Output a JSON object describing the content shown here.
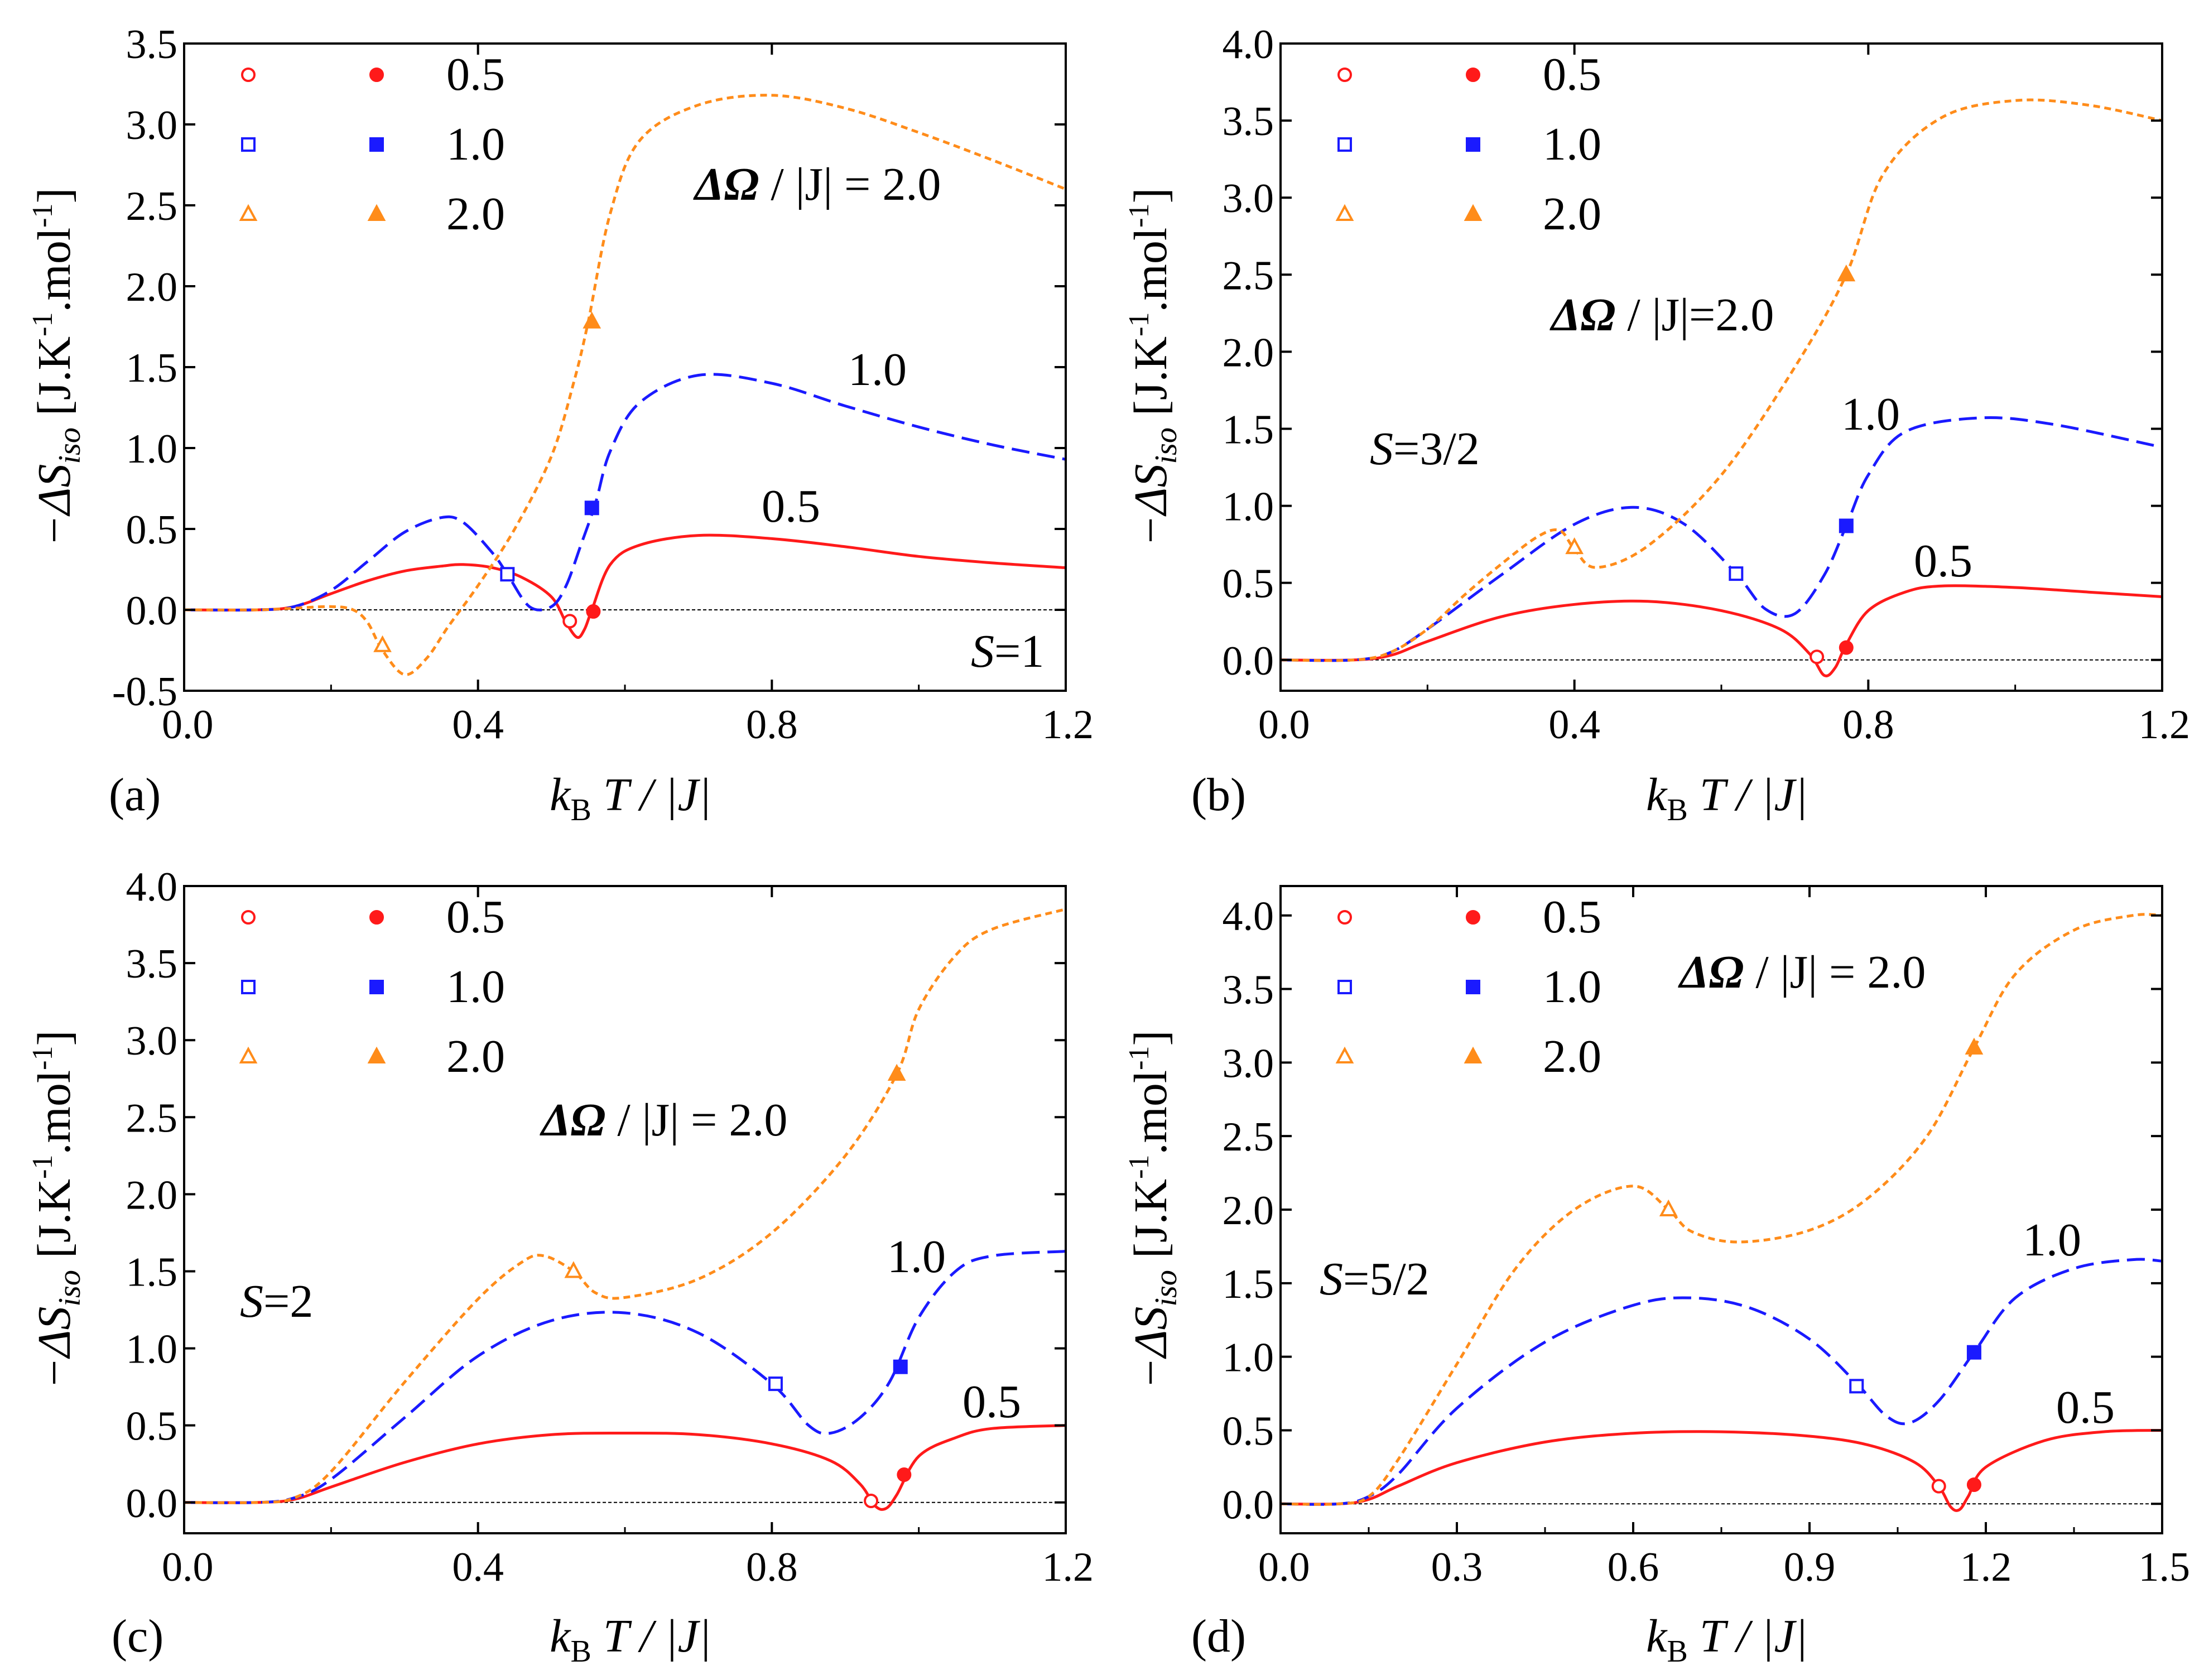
{
  "figure": {
    "xlabel_k": "k",
    "xlabel_sub": "B",
    "xlabel_rest": "T / |J|",
    "ylabel_prefix": "−ΔS",
    "ylabel_sub": "iso",
    "ylabel_units_a": "[J.K",
    "ylabel_sup1": "-1",
    "ylabel_units_b": ".mol",
    "ylabel_sup2": "-1",
    "ylabel_units_c": "]",
    "legend_entries": [
      {
        "label": "0.5",
        "color": "#ff1a1a",
        "marker": "circle"
      },
      {
        "label": "1.0",
        "color": "#1a1aff",
        "marker": "square"
      },
      {
        "label": "2.0",
        "color": "#ff8c1a",
        "marker": "triangle"
      }
    ],
    "colors": {
      "s05": "#ff1a1a",
      "s10": "#1a1aff",
      "s20": "#ff8c1a",
      "axis": "#000000",
      "zero_line": "#000000"
    }
  },
  "chart_data": [
    {
      "panel": "(a)",
      "type": "line",
      "spin_label": "S=1",
      "xlim": [
        0,
        1.2
      ],
      "ylim": [
        -0.5,
        3.5
      ],
      "xticks": [
        0.0,
        0.4,
        0.8,
        1.2
      ],
      "xtick_labels": [
        "0.0",
        "0.4",
        "0.8",
        "1.2"
      ],
      "yticks": [
        -0.5,
        0.0,
        0.5,
        1.0,
        1.5,
        2.0,
        2.5,
        3.0,
        3.5
      ],
      "ytick_labels": [
        "-0.5",
        "0.0",
        "0.5",
        "1.0",
        "1.5",
        "2.0",
        "2.5",
        "3.0",
        "3.5"
      ],
      "annotations": {
        "do_label": "ΔΩ",
        "do_rest": " / |J| = 2.0",
        "l10": "1.0",
        "l05": "0.5"
      },
      "series": [
        {
          "id": "s05",
          "x": [
            0,
            0.1,
            0.15,
            0.2,
            0.25,
            0.3,
            0.35,
            0.38,
            0.42,
            0.46,
            0.5,
            0.52,
            0.535,
            0.545,
            0.555,
            0.58,
            0.62,
            0.7,
            0.8,
            0.9,
            1.0,
            1.1,
            1.2
          ],
          "y": [
            0,
            0,
            0.02,
            0.1,
            0.18,
            0.24,
            0.27,
            0.28,
            0.26,
            0.2,
            0.08,
            -0.08,
            -0.17,
            -0.12,
            0.0,
            0.28,
            0.4,
            0.46,
            0.44,
            0.39,
            0.33,
            0.29,
            0.26
          ],
          "open_marker": [
            0.525,
            -0.07
          ],
          "filled_marker": [
            0.557,
            -0.01
          ]
        },
        {
          "id": "s10",
          "x": [
            0,
            0.1,
            0.15,
            0.2,
            0.25,
            0.3,
            0.35,
            0.38,
            0.42,
            0.44,
            0.47,
            0.5,
            0.52,
            0.54,
            0.56,
            0.58,
            0.62,
            0.7,
            0.8,
            0.9,
            1.0,
            1.1,
            1.2
          ],
          "y": [
            0,
            0,
            0.02,
            0.12,
            0.3,
            0.48,
            0.57,
            0.54,
            0.35,
            0.22,
            0.02,
            0.02,
            0.15,
            0.4,
            0.66,
            0.98,
            1.28,
            1.45,
            1.4,
            1.26,
            1.13,
            1.02,
            0.93
          ],
          "open_marker": [
            0.44,
            0.22
          ],
          "filled_marker": [
            0.555,
            0.63
          ]
        },
        {
          "id": "s20",
          "x": [
            0,
            0.1,
            0.15,
            0.2,
            0.23,
            0.25,
            0.27,
            0.3,
            0.33,
            0.36,
            0.4,
            0.45,
            0.5,
            0.53,
            0.55,
            0.58,
            0.62,
            0.7,
            0.8,
            0.9,
            1.0,
            1.1,
            1.2
          ],
          "y": [
            0,
            0,
            0.01,
            0.02,
            0.0,
            -0.08,
            -0.25,
            -0.4,
            -0.3,
            -0.1,
            0.15,
            0.5,
            0.95,
            1.4,
            1.78,
            2.45,
            2.9,
            3.12,
            3.18,
            3.1,
            2.95,
            2.78,
            2.6
          ],
          "open_marker": [
            0.27,
            -0.22
          ],
          "filled_marker": [
            0.555,
            1.78
          ]
        }
      ]
    },
    {
      "panel": "(b)",
      "type": "line",
      "spin_label": "S=3/2",
      "xlim": [
        0,
        1.2
      ],
      "ylim": [
        -0.2,
        4.0
      ],
      "xticks": [
        0.0,
        0.4,
        0.8,
        1.2
      ],
      "xtick_labels": [
        "0.0",
        "0.4",
        "0.8",
        "1.2"
      ],
      "yticks": [
        0.0,
        0.5,
        1.0,
        1.5,
        2.0,
        2.5,
        3.0,
        3.5,
        4.0
      ],
      "ytick_labels": [
        "0.0",
        "0.5",
        "1.0",
        "1.5",
        "2.0",
        "2.5",
        "3.0",
        "3.5",
        "4.0"
      ],
      "annotations": {
        "do_label": "ΔΩ",
        "do_rest": " / |J|=2.0",
        "l10": "1.0",
        "l05": "0.5"
      },
      "series": [
        {
          "id": "s05",
          "x": [
            0,
            0.1,
            0.15,
            0.2,
            0.3,
            0.4,
            0.5,
            0.6,
            0.68,
            0.72,
            0.74,
            0.755,
            0.77,
            0.8,
            0.85,
            0.9,
            1.0,
            1.1,
            1.2
          ],
          "y": [
            0,
            0,
            0.03,
            0.12,
            0.28,
            0.36,
            0.38,
            0.32,
            0.2,
            0.04,
            -0.1,
            -0.05,
            0.1,
            0.32,
            0.44,
            0.48,
            0.47,
            0.44,
            0.41
          ],
          "open_marker": [
            0.73,
            0.02
          ],
          "filled_marker": [
            0.77,
            0.08
          ]
        },
        {
          "id": "s10",
          "x": [
            0,
            0.1,
            0.15,
            0.2,
            0.3,
            0.4,
            0.48,
            0.55,
            0.62,
            0.66,
            0.7,
            0.74,
            0.77,
            0.8,
            0.85,
            0.95,
            1.05,
            1.2
          ],
          "y": [
            0,
            0,
            0.05,
            0.2,
            0.55,
            0.88,
            0.99,
            0.88,
            0.56,
            0.33,
            0.3,
            0.55,
            0.87,
            1.2,
            1.48,
            1.57,
            1.53,
            1.38
          ],
          "open_marker": [
            0.62,
            0.56
          ],
          "filled_marker": [
            0.77,
            0.87
          ]
        },
        {
          "id": "s20",
          "x": [
            0,
            0.1,
            0.15,
            0.2,
            0.25,
            0.3,
            0.35,
            0.38,
            0.4,
            0.43,
            0.5,
            0.6,
            0.7,
            0.77,
            0.82,
            0.9,
            1.0,
            1.1,
            1.2
          ],
          "y": [
            0,
            0,
            0.05,
            0.2,
            0.42,
            0.62,
            0.8,
            0.84,
            0.72,
            0.6,
            0.74,
            1.2,
            1.9,
            2.5,
            3.15,
            3.52,
            3.63,
            3.6,
            3.5
          ],
          "open_marker": [
            0.4,
            0.73
          ],
          "filled_marker": [
            0.77,
            2.5
          ]
        }
      ]
    },
    {
      "panel": "(c)",
      "type": "line",
      "spin_label": "S=2",
      "xlim": [
        0,
        1.2
      ],
      "ylim": [
        -0.2,
        4.0
      ],
      "xticks": [
        0.0,
        0.4,
        0.8,
        1.2
      ],
      "xtick_labels": [
        "0.0",
        "0.4",
        "0.8",
        "1.2"
      ],
      "yticks": [
        0.0,
        0.5,
        1.0,
        1.5,
        2.0,
        2.5,
        3.0,
        3.5,
        4.0
      ],
      "ytick_labels": [
        "0.0",
        "0.5",
        "1.0",
        "1.5",
        "2.0",
        "2.5",
        "3.0",
        "3.5",
        "4.0"
      ],
      "annotations": {
        "do_label": "ΔΩ",
        "do_rest": " / |J| = 2.0",
        "l10": "1.0",
        "l05": "0.5"
      },
      "series": [
        {
          "id": "s05",
          "x": [
            0,
            0.1,
            0.15,
            0.2,
            0.3,
            0.4,
            0.5,
            0.6,
            0.7,
            0.8,
            0.88,
            0.92,
            0.94,
            0.955,
            0.97,
            1.0,
            1.05,
            1.1,
            1.2
          ],
          "y": [
            0,
            0,
            0.02,
            0.1,
            0.26,
            0.38,
            0.44,
            0.45,
            0.44,
            0.38,
            0.27,
            0.12,
            -0.02,
            -0.04,
            0.05,
            0.3,
            0.42,
            0.48,
            0.5
          ],
          "open_marker": [
            0.935,
            0.01
          ],
          "filled_marker": [
            0.98,
            0.18
          ]
        },
        {
          "id": "s10",
          "x": [
            0,
            0.1,
            0.15,
            0.2,
            0.3,
            0.4,
            0.5,
            0.6,
            0.7,
            0.8,
            0.85,
            0.88,
            0.92,
            0.96,
            1.0,
            1.05,
            1.1,
            1.2
          ],
          "y": [
            0,
            0,
            0.03,
            0.15,
            0.55,
            0.95,
            1.18,
            1.23,
            1.1,
            0.77,
            0.5,
            0.45,
            0.55,
            0.78,
            1.2,
            1.5,
            1.6,
            1.63
          ],
          "open_marker": [
            0.805,
            0.77
          ],
          "filled_marker": [
            0.975,
            0.88
          ]
        },
        {
          "id": "s20",
          "x": [
            0,
            0.1,
            0.15,
            0.2,
            0.3,
            0.4,
            0.46,
            0.49,
            0.53,
            0.56,
            0.6,
            0.7,
            0.8,
            0.9,
            0.97,
            1.0,
            1.05,
            1.1,
            1.2
          ],
          "y": [
            0,
            0,
            0.03,
            0.2,
            0.78,
            1.32,
            1.56,
            1.6,
            1.5,
            1.36,
            1.33,
            1.45,
            1.75,
            2.25,
            2.78,
            3.2,
            3.55,
            3.72,
            3.85
          ],
          "open_marker": [
            0.53,
            1.5
          ],
          "filled_marker": [
            0.97,
            2.78
          ]
        }
      ]
    },
    {
      "panel": "(d)",
      "type": "line",
      "spin_label": "S=5/2",
      "xlim": [
        0,
        1.5
      ],
      "ylim": [
        -0.2,
        4.2
      ],
      "xticks": [
        0.0,
        0.3,
        0.6,
        0.9,
        1.2,
        1.5
      ],
      "xtick_labels": [
        "0.0",
        "0.3",
        "0.6",
        "0.9",
        "1.2",
        "1.5"
      ],
      "yticks": [
        0.0,
        0.5,
        1.0,
        1.5,
        2.0,
        2.5,
        3.0,
        3.5,
        4.0
      ],
      "ytick_labels": [
        "0.0",
        "0.5",
        "1.0",
        "1.5",
        "2.0",
        "2.5",
        "3.0",
        "3.5",
        "4.0"
      ],
      "annotations": {
        "do_label": "ΔΩ",
        "do_rest": " / |J| = 2.0",
        "l10": "1.0",
        "l05": "0.5"
      },
      "series": [
        {
          "id": "s05",
          "x": [
            0,
            0.1,
            0.15,
            0.2,
            0.3,
            0.45,
            0.6,
            0.75,
            0.9,
            1.0,
            1.08,
            1.12,
            1.14,
            1.155,
            1.17,
            1.2,
            1.3,
            1.4,
            1.5
          ],
          "y": [
            0,
            0,
            0.03,
            0.12,
            0.28,
            0.42,
            0.48,
            0.49,
            0.46,
            0.4,
            0.28,
            0.12,
            -0.02,
            -0.04,
            0.05,
            0.25,
            0.43,
            0.49,
            0.5
          ],
          "open_marker": [
            1.12,
            0.12
          ],
          "filled_marker": [
            1.18,
            0.13
          ]
        },
        {
          "id": "s10",
          "x": [
            0,
            0.1,
            0.15,
            0.2,
            0.3,
            0.45,
            0.6,
            0.7,
            0.8,
            0.9,
            0.98,
            1.03,
            1.07,
            1.12,
            1.18,
            1.25,
            1.35,
            1.45,
            1.5
          ],
          "y": [
            0,
            0,
            0.05,
            0.2,
            0.65,
            1.1,
            1.35,
            1.4,
            1.33,
            1.12,
            0.82,
            0.6,
            0.55,
            0.7,
            1.03,
            1.4,
            1.6,
            1.66,
            1.65
          ],
          "open_marker": [
            0.98,
            0.8
          ],
          "filled_marker": [
            1.18,
            1.03
          ]
        },
        {
          "id": "s20",
          "x": [
            0,
            0.1,
            0.15,
            0.2,
            0.3,
            0.4,
            0.5,
            0.6,
            0.66,
            0.7,
            0.78,
            0.9,
            1.0,
            1.1,
            1.18,
            1.25,
            1.35,
            1.45,
            1.5
          ],
          "y": [
            0,
            0,
            0.05,
            0.3,
            0.95,
            1.6,
            2.0,
            2.16,
            2.0,
            1.85,
            1.78,
            1.86,
            2.08,
            2.5,
            3.1,
            3.6,
            3.9,
            4.0,
            4.0
          ],
          "open_marker": [
            0.66,
            2.0
          ],
          "filled_marker": [
            1.18,
            3.1
          ]
        }
      ]
    }
  ]
}
